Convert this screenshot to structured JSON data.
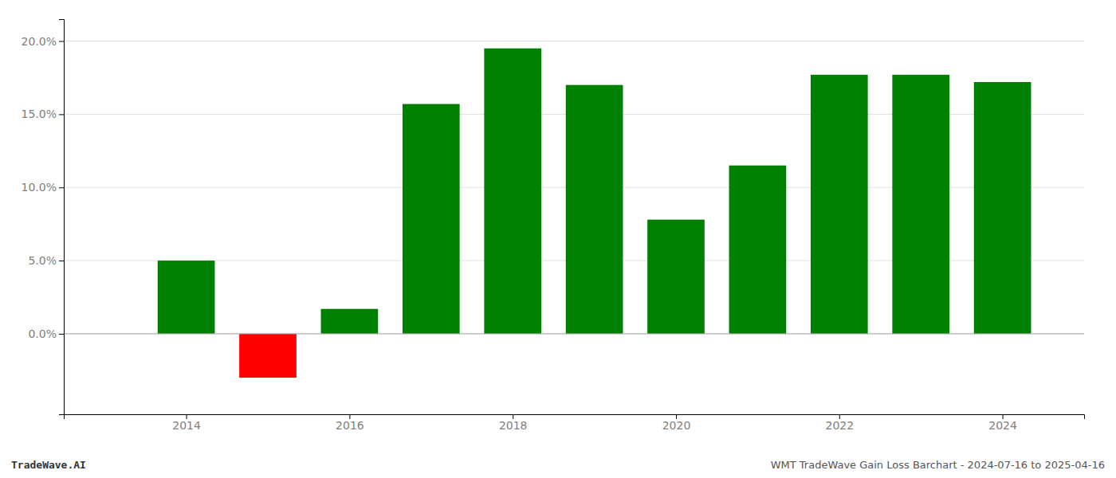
{
  "chart_data": {
    "type": "bar",
    "x": [
      2014,
      2015,
      2016,
      2017,
      2018,
      2019,
      2020,
      2021,
      2022,
      2023,
      2024
    ],
    "values": [
      0.05,
      -0.03,
      0.017,
      0.157,
      0.195,
      0.17,
      0.078,
      0.115,
      0.177,
      0.177,
      0.172
    ],
    "colors": [
      "#008000",
      "#ff0000",
      "#008000",
      "#008000",
      "#008000",
      "#008000",
      "#008000",
      "#008000",
      "#008000",
      "#008000",
      "#008000"
    ],
    "xlim": [
      2012.5,
      2025.0
    ],
    "xticks": [
      2014,
      2016,
      2018,
      2020,
      2022,
      2024
    ],
    "ylim": [
      -0.055,
      0.215
    ],
    "yticks": [
      {
        "value": 0.0,
        "label": "0.0%"
      },
      {
        "value": 0.05,
        "label": "5.0%"
      },
      {
        "value": 0.1,
        "label": "10.0%"
      },
      {
        "value": 0.15,
        "label": "15.0%"
      },
      {
        "value": 0.2,
        "label": "20.0%"
      }
    ],
    "grid": true,
    "annotations": [
      "TradeWave.AI",
      "WMT TradeWave Gain Loss Barchart - 2024-07-16 to 2025-04-16"
    ]
  }
}
